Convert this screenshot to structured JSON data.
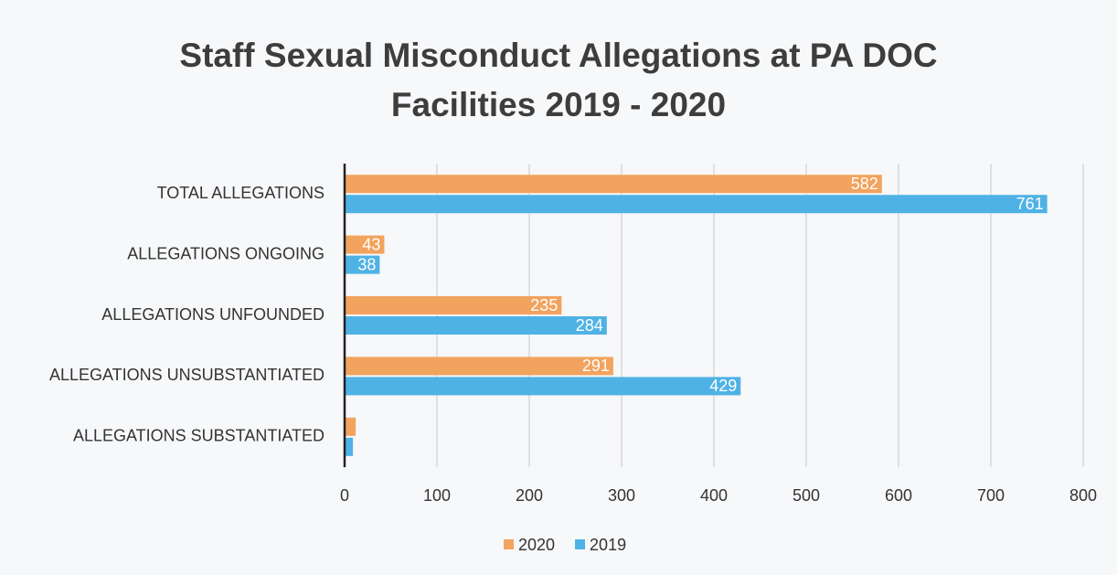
{
  "chart_data": {
    "type": "barh",
    "title": "Staff Sexual Misconduct Allegations at PA DOC Facilities 2019 - 2020",
    "categories": [
      "TOTAL ALLEGATIONS",
      "ALLEGATIONS ONGOING",
      "ALLEGATIONS UNFOUNDED",
      "ALLEGATIONS UNSUBSTANTIATED",
      "ALLEGATIONS SUBSTANTIATED"
    ],
    "series": [
      {
        "name": "2020",
        "color": "#f2a35e",
        "values": [
          582,
          43,
          235,
          291,
          12
        ]
      },
      {
        "name": "2019",
        "color": "#4fb2e5",
        "values": [
          761,
          38,
          284,
          429,
          9
        ]
      }
    ],
    "xlim": [
      0,
      800
    ],
    "xticks": [
      0,
      100,
      200,
      300,
      400,
      500,
      600,
      700,
      800
    ],
    "grid": true,
    "legend": "bottom"
  }
}
